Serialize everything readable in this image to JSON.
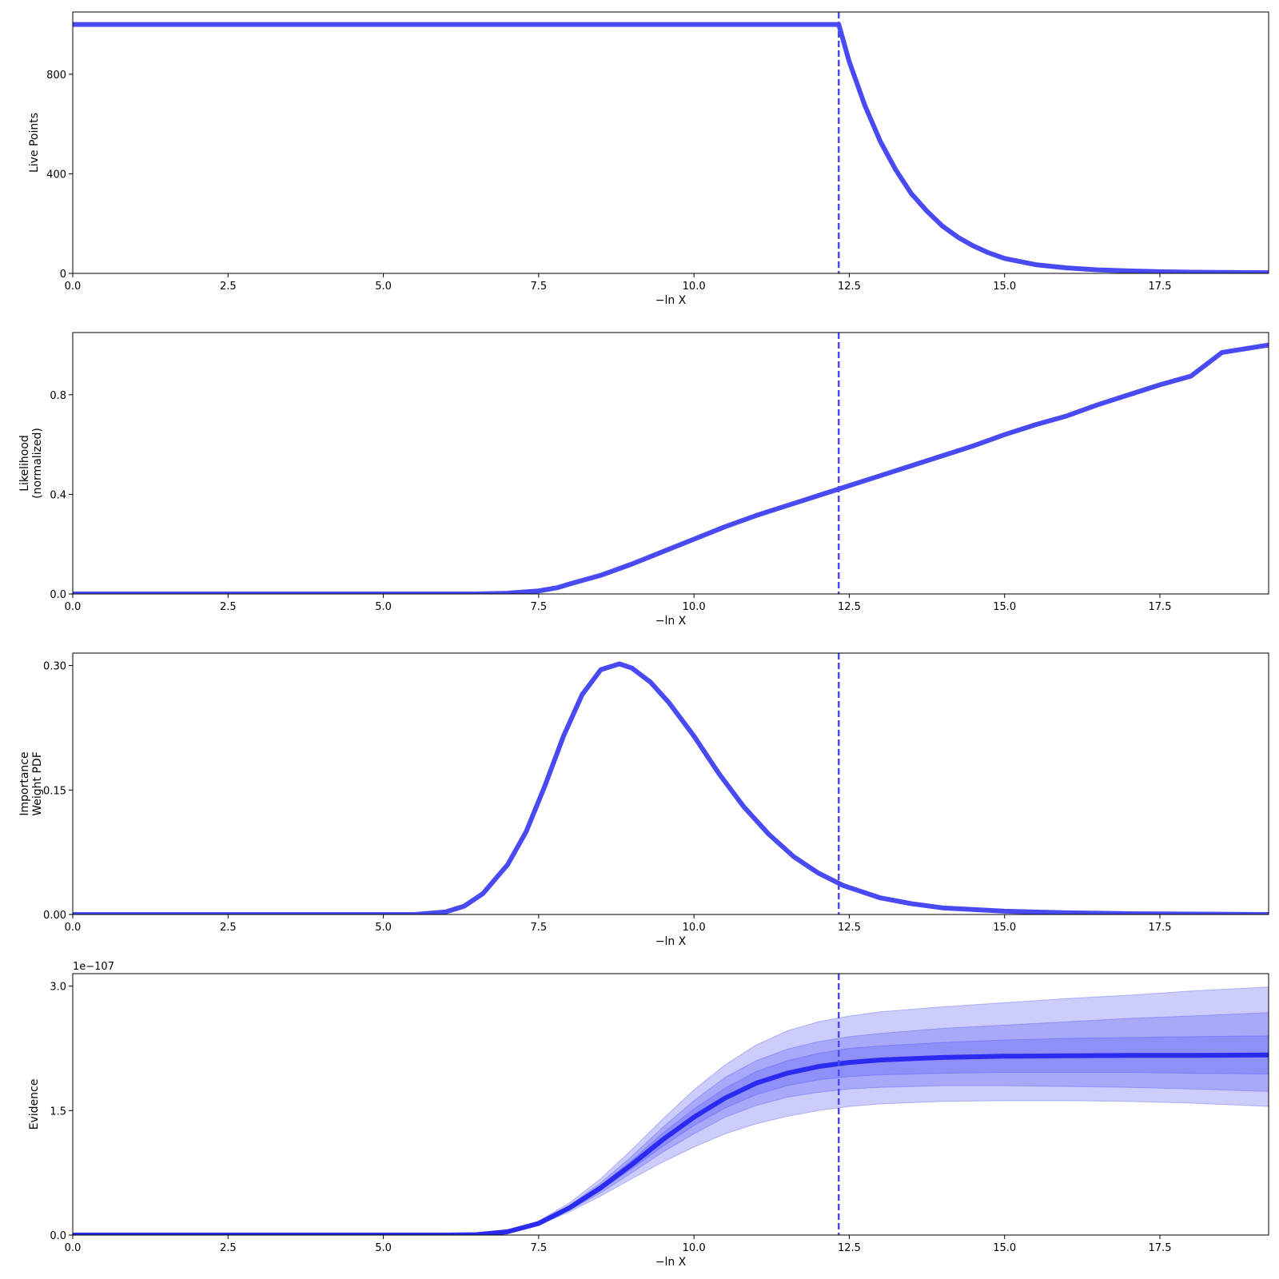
{
  "colors": {
    "line": "#4a4af5",
    "evidence_line": "#2a2af0",
    "band": "#4a4af5",
    "frame": "#000000"
  },
  "chart_data": [
    {
      "type": "line",
      "ylabel": [
        "Live Points"
      ],
      "xlabel": "−ln X",
      "xlim": [
        0,
        19.25
      ],
      "ylim": [
        0,
        1050
      ],
      "xticks": [
        0,
        2.5,
        5,
        7.5,
        10,
        12.5,
        15,
        17.5
      ],
      "xtick_labels": [
        "0.0",
        "2.5",
        "5.0",
        "7.5",
        "10.0",
        "12.5",
        "15.0",
        "17.5"
      ],
      "yticks": [
        0,
        400,
        800
      ],
      "ytick_labels": [
        "0",
        "400",
        "800"
      ],
      "vline": 12.33,
      "series": [
        {
          "x": [
            0,
            12.33,
            12.5,
            12.75,
            13.0,
            13.25,
            13.5,
            13.75,
            14.0,
            14.25,
            14.5,
            14.75,
            15.0,
            15.5,
            16.0,
            16.5,
            17.0,
            17.5,
            18.0,
            18.5,
            19.25
          ],
          "y": [
            1000,
            1000,
            850,
            675,
            530,
            415,
            320,
            250,
            190,
            145,
            110,
            82,
            60,
            35,
            22,
            14,
            10,
            7,
            5,
            4,
            3
          ]
        }
      ]
    },
    {
      "type": "line",
      "ylabel": [
        "Likelihood",
        "(normalized)"
      ],
      "xlabel": "−ln X",
      "xlim": [
        0,
        19.25
      ],
      "ylim": [
        0,
        1.05
      ],
      "xticks": [
        0,
        2.5,
        5,
        7.5,
        10,
        12.5,
        15,
        17.5
      ],
      "xtick_labels": [
        "0.0",
        "2.5",
        "5.0",
        "7.5",
        "10.0",
        "12.5",
        "15.0",
        "17.5"
      ],
      "yticks": [
        0,
        0.4,
        0.8
      ],
      "ytick_labels": [
        "0.0",
        "0.4",
        "0.8"
      ],
      "vline": 12.33,
      "series": [
        {
          "x": [
            0,
            6.5,
            7.0,
            7.5,
            7.8,
            8.0,
            8.5,
            9.0,
            9.5,
            10.0,
            10.5,
            11.0,
            11.5,
            12.0,
            12.5,
            13.0,
            13.5,
            14.0,
            14.5,
            15.0,
            15.5,
            16.0,
            16.5,
            17.0,
            17.5,
            18.0,
            18.5,
            19.25
          ],
          "y": [
            0,
            0.0,
            0.003,
            0.012,
            0.025,
            0.04,
            0.075,
            0.12,
            0.17,
            0.22,
            0.27,
            0.315,
            0.355,
            0.395,
            0.435,
            0.475,
            0.515,
            0.555,
            0.595,
            0.64,
            0.68,
            0.715,
            0.76,
            0.8,
            0.84,
            0.875,
            0.97,
            1.0
          ]
        }
      ]
    },
    {
      "type": "line",
      "ylabel": [
        "Importance",
        "Weight PDF"
      ],
      "xlabel": "−ln X",
      "xlim": [
        0,
        19.25
      ],
      "ylim": [
        0,
        0.315
      ],
      "xticks": [
        0,
        2.5,
        5,
        7.5,
        10,
        12.5,
        15,
        17.5
      ],
      "xtick_labels": [
        "0.0",
        "2.5",
        "5.0",
        "7.5",
        "10.0",
        "12.5",
        "15.0",
        "17.5"
      ],
      "yticks": [
        0,
        0.15,
        0.3
      ],
      "ytick_labels": [
        "0.00",
        "0.15",
        "0.30"
      ],
      "vline": 12.33,
      "series": [
        {
          "x": [
            0,
            5.5,
            6.0,
            6.3,
            6.6,
            7.0,
            7.3,
            7.6,
            7.9,
            8.2,
            8.5,
            8.8,
            9.0,
            9.3,
            9.6,
            10.0,
            10.4,
            10.8,
            11.2,
            11.6,
            12.0,
            12.4,
            13.0,
            13.5,
            14.0,
            15.0,
            16.0,
            17.0,
            19.25
          ],
          "y": [
            0,
            0.0,
            0.003,
            0.01,
            0.025,
            0.06,
            0.1,
            0.155,
            0.215,
            0.265,
            0.295,
            0.302,
            0.297,
            0.28,
            0.255,
            0.215,
            0.17,
            0.13,
            0.097,
            0.07,
            0.05,
            0.035,
            0.02,
            0.013,
            0.008,
            0.004,
            0.002,
            0.001,
            0
          ]
        }
      ]
    },
    {
      "type": "area",
      "ylabel": [
        "Evidence"
      ],
      "xlabel": "−ln X",
      "offset_label": "1e−107",
      "xlim": [
        0,
        19.25
      ],
      "ylim": [
        0,
        3.15
      ],
      "xticks": [
        0,
        2.5,
        5,
        7.5,
        10,
        12.5,
        15,
        17.5
      ],
      "xtick_labels": [
        "0.0",
        "2.5",
        "5.0",
        "7.5",
        "10.0",
        "12.5",
        "15.0",
        "17.5"
      ],
      "yticks": [
        0,
        1.5,
        3.0
      ],
      "ytick_labels": [
        "0.0",
        "1.5",
        "3.0"
      ],
      "vline": 12.33,
      "x": [
        0,
        6.0,
        6.5,
        7.0,
        7.5,
        8.0,
        8.5,
        9.0,
        9.5,
        10.0,
        10.5,
        11.0,
        11.5,
        12.0,
        12.5,
        13.0,
        14.0,
        15.0,
        16.0,
        17.0,
        18.0,
        19.25
      ],
      "median": [
        0,
        0,
        0.005,
        0.04,
        0.14,
        0.33,
        0.57,
        0.85,
        1.15,
        1.42,
        1.65,
        1.83,
        1.95,
        2.03,
        2.08,
        2.11,
        2.14,
        2.155,
        2.16,
        2.165,
        2.165,
        2.17
      ],
      "bands": [
        {
          "lower": [
            0,
            0,
            0.004,
            0.035,
            0.12,
            0.28,
            0.47,
            0.68,
            0.88,
            1.06,
            1.22,
            1.34,
            1.43,
            1.5,
            1.55,
            1.58,
            1.61,
            1.62,
            1.62,
            1.61,
            1.59,
            1.55
          ],
          "upper": [
            0,
            0,
            0.006,
            0.05,
            0.17,
            0.39,
            0.68,
            1.03,
            1.4,
            1.75,
            2.05,
            2.29,
            2.46,
            2.57,
            2.64,
            2.69,
            2.75,
            2.8,
            2.85,
            2.89,
            2.94,
            2.99
          ]
        },
        {
          "lower": [
            0,
            0,
            0.0045,
            0.037,
            0.125,
            0.3,
            0.51,
            0.75,
            1.0,
            1.22,
            1.42,
            1.56,
            1.66,
            1.72,
            1.76,
            1.78,
            1.8,
            1.8,
            1.79,
            1.78,
            1.76,
            1.73
          ],
          "upper": [
            0,
            0,
            0.0055,
            0.045,
            0.155,
            0.36,
            0.63,
            0.95,
            1.3,
            1.62,
            1.9,
            2.1,
            2.24,
            2.33,
            2.39,
            2.43,
            2.49,
            2.53,
            2.57,
            2.61,
            2.64,
            2.68
          ]
        },
        {
          "lower": [
            0,
            0,
            0.005,
            0.038,
            0.13,
            0.31,
            0.54,
            0.8,
            1.07,
            1.32,
            1.53,
            1.69,
            1.8,
            1.87,
            1.91,
            1.93,
            1.95,
            1.96,
            1.96,
            1.96,
            1.95,
            1.94
          ],
          "upper": [
            0,
            0,
            0.005,
            0.042,
            0.15,
            0.35,
            0.6,
            0.9,
            1.23,
            1.52,
            1.77,
            1.97,
            2.1,
            2.19,
            2.25,
            2.28,
            2.32,
            2.35,
            2.37,
            2.38,
            2.39,
            2.4
          ]
        }
      ]
    }
  ]
}
